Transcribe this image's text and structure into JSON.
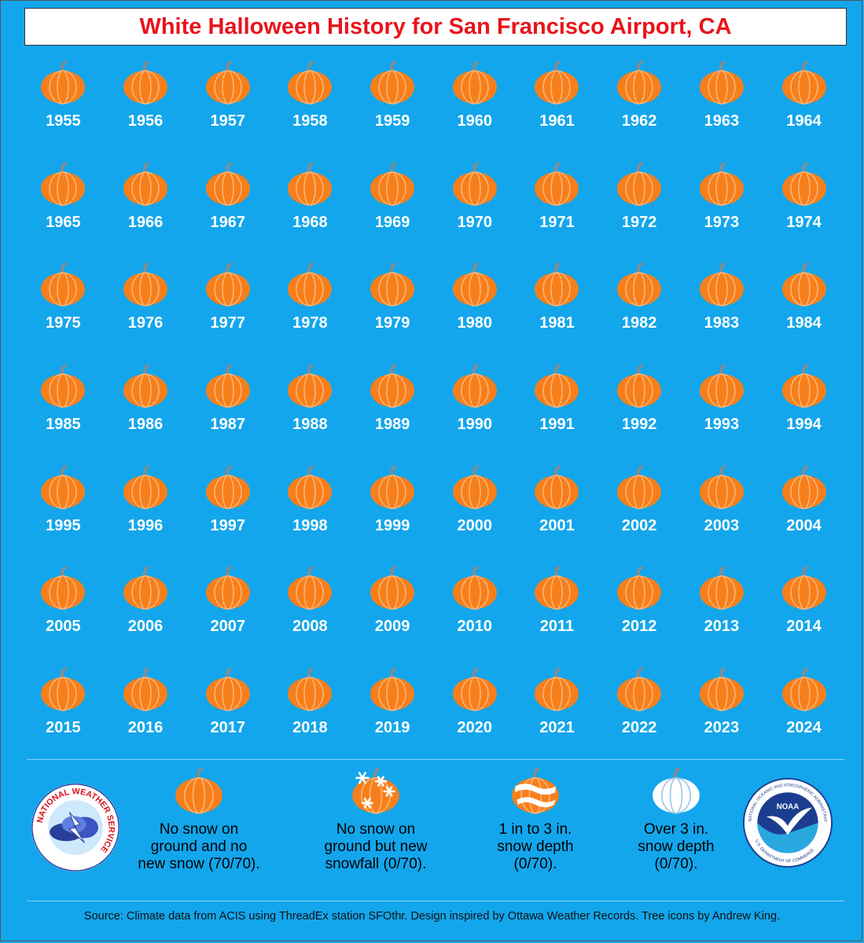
{
  "title": "White Halloween History for San Francisco Airport, CA",
  "colors": {
    "background": "#13a6ec",
    "title": "#e8141b",
    "pumpkin": "#f77f1b",
    "pumpkin_rib": "#ffb271",
    "stem": "#8a8a8a",
    "year_text": "#ffffff"
  },
  "years": [
    "1955",
    "1956",
    "1957",
    "1958",
    "1959",
    "1960",
    "1961",
    "1962",
    "1963",
    "1964",
    "1965",
    "1966",
    "1967",
    "1968",
    "1969",
    "1970",
    "1971",
    "1972",
    "1973",
    "1974",
    "1975",
    "1976",
    "1977",
    "1978",
    "1979",
    "1980",
    "1981",
    "1982",
    "1983",
    "1984",
    "1985",
    "1986",
    "1987",
    "1988",
    "1989",
    "1990",
    "1991",
    "1992",
    "1993",
    "1994",
    "1995",
    "1996",
    "1997",
    "1998",
    "1999",
    "2000",
    "2001",
    "2002",
    "2003",
    "2004",
    "2005",
    "2006",
    "2007",
    "2008",
    "2009",
    "2010",
    "2011",
    "2012",
    "2013",
    "2014",
    "2015",
    "2016",
    "2017",
    "2018",
    "2019",
    "2020",
    "2021",
    "2022",
    "2023",
    "2024"
  ],
  "year_icon": "pumpkin-icon",
  "legend": {
    "no_snow": {
      "icon": "pumpkin-icon",
      "text": "No snow on\nground and no\nnew snow (70/70)."
    },
    "new_snowfall": {
      "icon": "pumpkin-snowflake-icon",
      "text": "No snow on\nground but new\nsnowfall (0/70)."
    },
    "snow_1_3": {
      "icon": "pumpkin-partial-snow-icon",
      "text": "1 in to 3 in.\nsnow depth\n(0/70)."
    },
    "snow_over_3": {
      "icon": "pumpkin-white-icon",
      "text": "Over 3 in.\nsnow depth\n(0/70)."
    }
  },
  "logos": {
    "nws": {
      "text": "NATIONAL WEATHER SERVICE"
    },
    "noaa": {
      "text": "NOAA",
      "ring_text": "NATIONAL OCEANIC AND ATMOSPHERIC ADMINISTRATION",
      "ring_text_bottom": "U.S. DEPARTMENT OF COMMERCE"
    }
  },
  "source": "Source: Climate data from ACIS using ThreadEx station SFOthr. Design inspired by Ottawa Weather Records. Tree icons by Andrew King."
}
